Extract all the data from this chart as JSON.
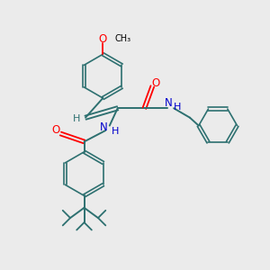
{
  "background_color": "#ebebeb",
  "bond_color": "#2d7070",
  "atom_colors": {
    "O": "#ff0000",
    "N": "#0000cc",
    "C": "#000000",
    "H": "#2d7070"
  },
  "figsize": [
    3.0,
    3.0
  ],
  "dpi": 100
}
